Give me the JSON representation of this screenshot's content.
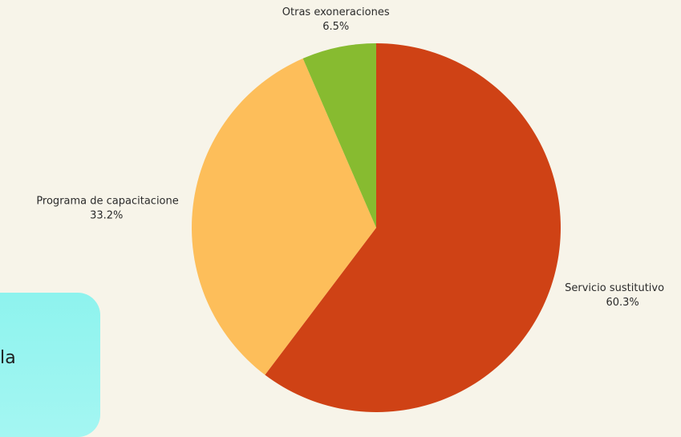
{
  "side_card": {
    "text": "la"
  },
  "chart_data": {
    "type": "pie",
    "title": "",
    "start_angle_deg": 0,
    "direction": "clockwise",
    "slices": [
      {
        "label": "Servicio sustitutivo",
        "value": 60.3,
        "percent_label": "60.3%",
        "color": "#cf4215"
      },
      {
        "label": "Programa de capacitacione",
        "value": 33.2,
        "percent_label": "33.2%",
        "color": "#fdbe5a"
      },
      {
        "label": "Otras exoneraciones",
        "value": 6.5,
        "percent_label": "6.5%",
        "color": "#87bb30"
      }
    ]
  }
}
